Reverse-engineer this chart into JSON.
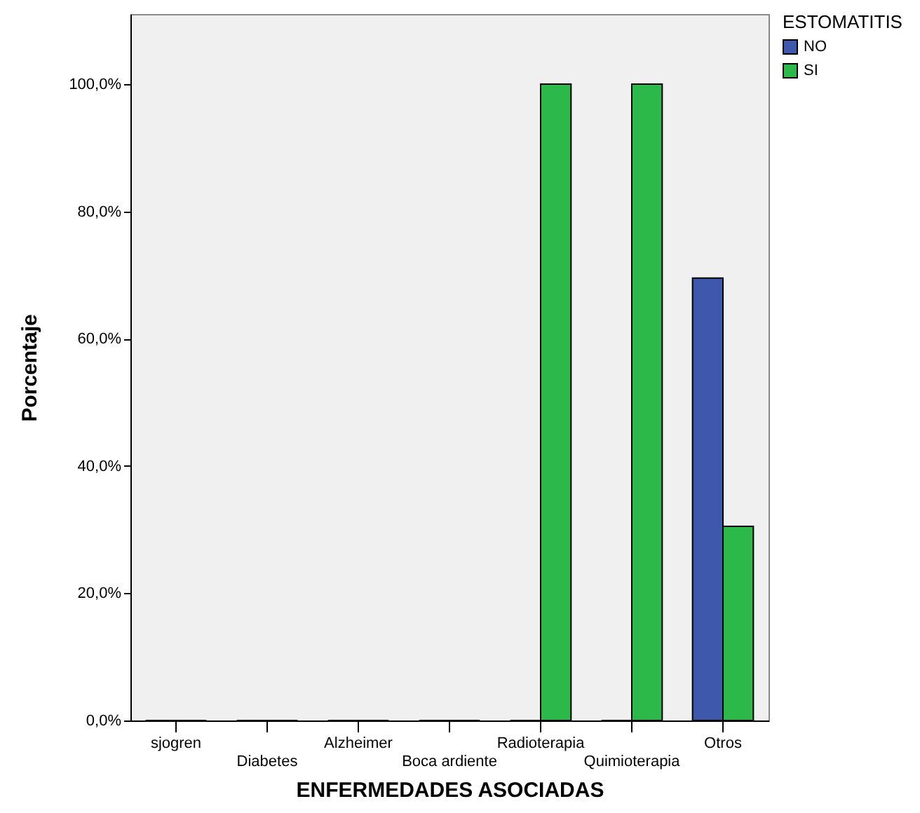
{
  "chart_data": {
    "type": "bar",
    "xlabel": "ENFERMEDADES ASOCIADAS",
    "ylabel": "Porcentaje",
    "legend_title": "ESTOMATITIS",
    "categories": [
      "sjogren",
      "Diabetes",
      "Alzheimer",
      "Boca ardiente",
      "Radioterapia",
      "Quimioterapia",
      "Otros"
    ],
    "series": [
      {
        "name": "NO",
        "color": "#3e58ac",
        "values": [
          0,
          0,
          0,
          0,
          0,
          0,
          69.5
        ]
      },
      {
        "name": "SI",
        "color": "#2db84a",
        "values": [
          0,
          0,
          0,
          0,
          100,
          100,
          30.5
        ]
      }
    ],
    "ylim": [
      0,
      111
    ],
    "yticks": [
      {
        "value": 0,
        "label": "0,0%"
      },
      {
        "value": 20,
        "label": "20,0%"
      },
      {
        "value": 40,
        "label": "40,0%"
      },
      {
        "value": 60,
        "label": "60,0%"
      },
      {
        "value": 80,
        "label": "80,0%"
      },
      {
        "value": 100,
        "label": "100,0%"
      }
    ],
    "legend": "top right",
    "grid": false
  }
}
